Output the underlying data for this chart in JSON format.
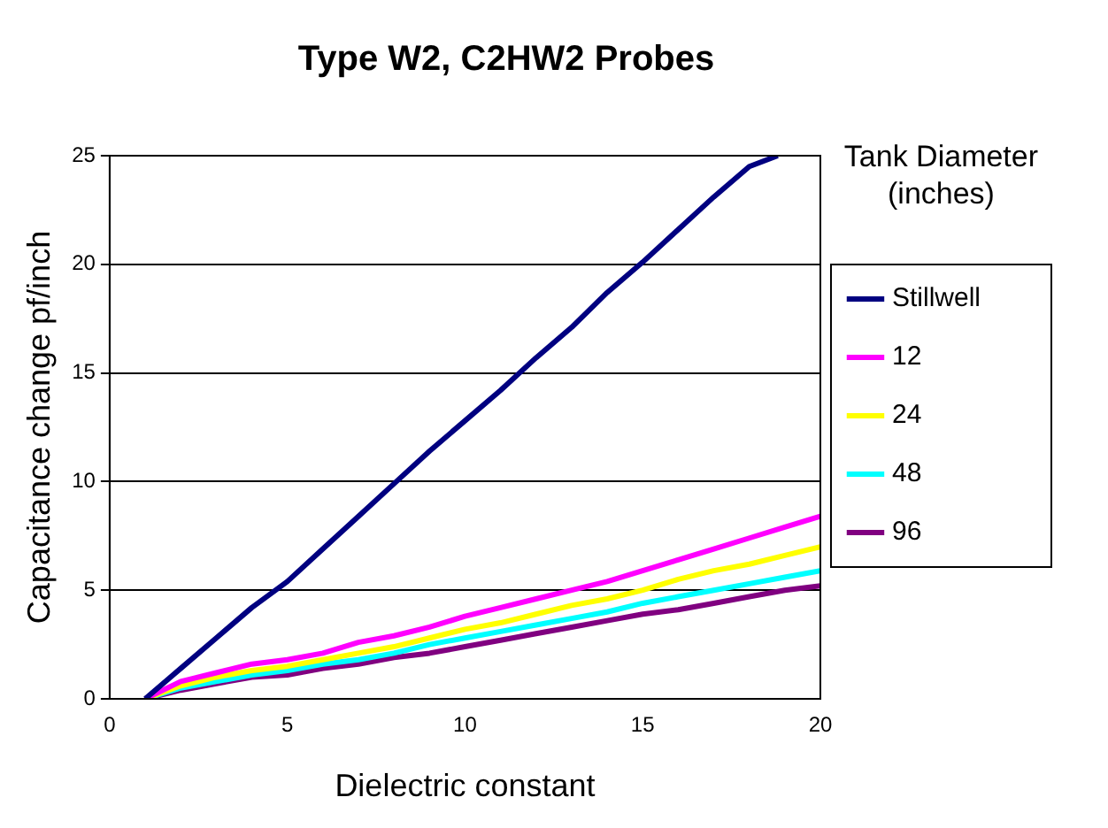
{
  "chart_data": {
    "type": "line",
    "title": "Type W2, C2HW2 Probes",
    "xlabel": "Dielectric constant",
    "ylabel": "Capacitance change pf/inch",
    "legend_title": "Tank Diameter (inches)",
    "x": [
      1,
      2,
      3,
      4,
      5,
      6,
      7,
      8,
      9,
      10,
      11,
      12,
      13,
      14,
      15,
      16,
      17,
      18,
      19,
      20
    ],
    "series": [
      {
        "name": "Stillwell",
        "color": "#000080",
        "x": [
          1,
          2,
          3,
          4,
          5,
          6,
          7,
          8,
          9,
          10,
          11,
          12,
          13,
          14,
          15,
          16,
          17,
          18,
          18.8
        ],
        "values": [
          0,
          1.4,
          2.8,
          4.2,
          5.4,
          6.9,
          8.4,
          9.9,
          11.4,
          12.8,
          14.2,
          15.7,
          17.1,
          18.7,
          20.1,
          21.6,
          23.1,
          24.5,
          25
        ]
      },
      {
        "name": "12",
        "color": "#ff00ff",
        "values": [
          0,
          0.8,
          1.2,
          1.6,
          1.8,
          2.1,
          2.6,
          2.9,
          3.3,
          3.8,
          4.2,
          4.6,
          5.0,
          5.4,
          5.9,
          6.4,
          6.9,
          7.4,
          7.9,
          8.4
        ]
      },
      {
        "name": "24",
        "color": "#ffff00",
        "values": [
          0,
          0.6,
          1.0,
          1.3,
          1.5,
          1.8,
          2.1,
          2.4,
          2.8,
          3.2,
          3.5,
          3.9,
          4.3,
          4.6,
          5.0,
          5.5,
          5.9,
          6.2,
          6.6,
          7.0
        ]
      },
      {
        "name": "48",
        "color": "#00ffff",
        "values": [
          0,
          0.5,
          0.8,
          1.1,
          1.3,
          1.6,
          1.8,
          2.1,
          2.5,
          2.8,
          3.1,
          3.4,
          3.7,
          4.0,
          4.4,
          4.7,
          5.0,
          5.3,
          5.6,
          5.9
        ]
      },
      {
        "name": "96",
        "color": "#800080",
        "values": [
          0,
          0.4,
          0.7,
          1.0,
          1.1,
          1.4,
          1.6,
          1.9,
          2.1,
          2.4,
          2.7,
          3.0,
          3.3,
          3.6,
          3.9,
          4.1,
          4.4,
          4.7,
          5.0,
          5.2
        ]
      }
    ],
    "xlim": [
      0,
      20
    ],
    "ylim": [
      0,
      25
    ],
    "xticks": [
      0,
      5,
      10,
      15,
      20
    ],
    "yticks": [
      0,
      5,
      10,
      15,
      20,
      25
    ],
    "grid": "y",
    "legend": "right",
    "marker": "none",
    "line_style": "solid"
  }
}
